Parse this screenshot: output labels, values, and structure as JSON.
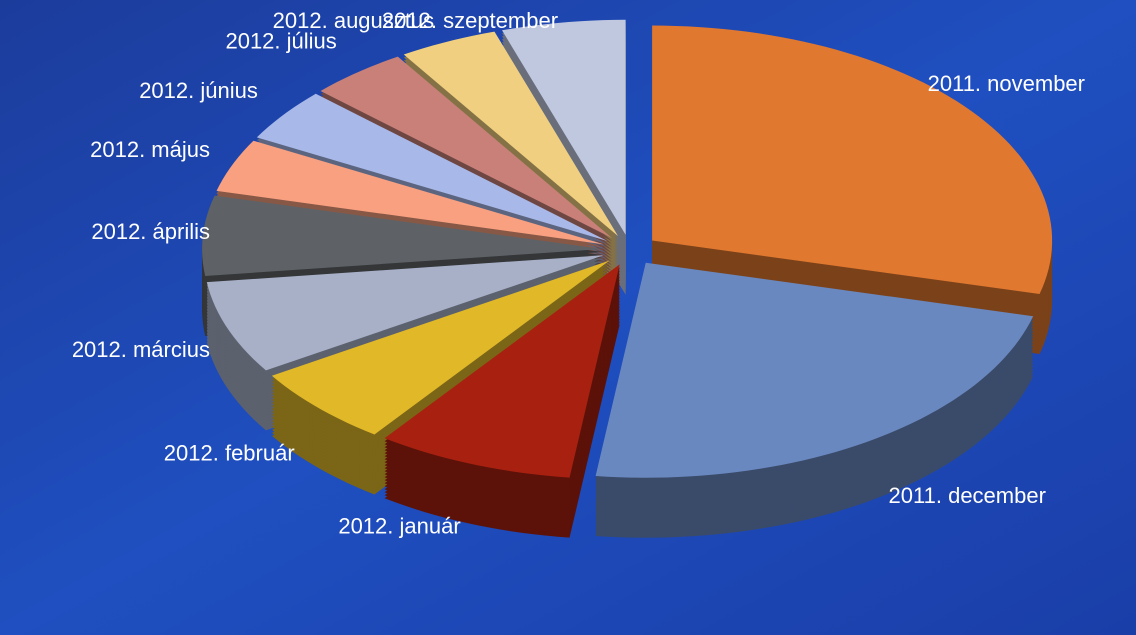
{
  "chart_data": {
    "type": "pie",
    "categories": [
      "2011. november",
      "2011. december",
      "2012. január",
      "2012. február",
      "2012. március",
      "2012. április",
      "2012. május",
      "2012. június",
      "2012. július",
      "2012. augusztus",
      "2012. szeptember"
    ],
    "values": [
      29,
      23,
      8,
      6,
      7,
      6,
      4,
      4,
      4,
      4,
      5
    ],
    "colors": [
      "#e07830",
      "#6a88c0",
      "#a82010",
      "#e0b828",
      "#a8b0c8",
      "#5e6266",
      "#f8a080",
      "#a8b8e8",
      "#c88078",
      "#f0d080",
      "#c0c8e0"
    ]
  }
}
